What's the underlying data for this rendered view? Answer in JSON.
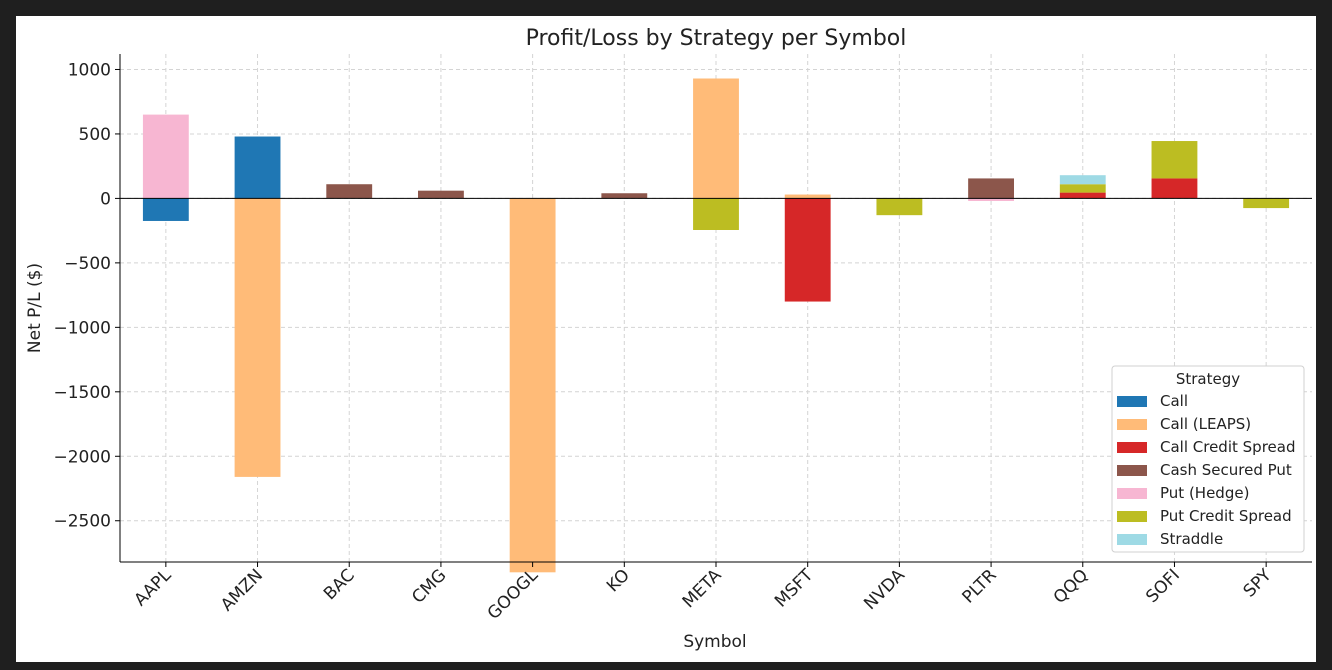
{
  "chart_data": {
    "type": "bar",
    "stacked": true,
    "title": "Profit/Loss by Strategy per Symbol",
    "xlabel": "Symbol",
    "ylabel": "Net P/L ($)",
    "ylim": [
      -2820,
      1120
    ],
    "yticks": [
      1000,
      500,
      0,
      -500,
      -1000,
      -1500,
      -2000,
      -2500
    ],
    "ytick_labels": [
      "1000",
      "500",
      "0",
      "−500",
      "−1000",
      "−1500",
      "−2000",
      "−2500"
    ],
    "grid": true,
    "legend_position": "bottom-right",
    "legend_title": "Strategy",
    "categories": [
      "AAPL",
      "AMZN",
      "BAC",
      "CMG",
      "GOOGL",
      "KO",
      "META",
      "MSFT",
      "NVDA",
      "PLTR",
      "QQQ",
      "SOFI",
      "SPY"
    ],
    "series": [
      {
        "name": "Call",
        "color": "#1f77b4",
        "values": [
          -175,
          480,
          0,
          0,
          0,
          0,
          0,
          0,
          0,
          0,
          0,
          0,
          0
        ]
      },
      {
        "name": "Call (LEAPS)",
        "color": "#ffbb78",
        "values": [
          0,
          -2160,
          0,
          0,
          -2900,
          0,
          930,
          30,
          0,
          0,
          0,
          0,
          0
        ]
      },
      {
        "name": "Call Credit Spread",
        "color": "#d62728",
        "values": [
          0,
          0,
          0,
          0,
          0,
          0,
          0,
          -800,
          0,
          0,
          45,
          155,
          0
        ]
      },
      {
        "name": "Cash Secured Put",
        "color": "#8c564b",
        "values": [
          0,
          0,
          110,
          60,
          0,
          40,
          0,
          0,
          0,
          155,
          0,
          0,
          0
        ]
      },
      {
        "name": "Put (Hedge)",
        "color": "#f7b6d2",
        "values": [
          650,
          0,
          0,
          0,
          0,
          0,
          0,
          0,
          0,
          -20,
          0,
          0,
          0
        ]
      },
      {
        "name": "Put Credit Spread",
        "color": "#bcbd22",
        "values": [
          0,
          0,
          0,
          0,
          0,
          0,
          -245,
          0,
          -130,
          0,
          65,
          290,
          -75
        ]
      },
      {
        "name": "Straddle",
        "color": "#9edae5",
        "values": [
          0,
          0,
          0,
          0,
          0,
          0,
          0,
          0,
          0,
          0,
          70,
          0,
          0
        ]
      }
    ]
  }
}
